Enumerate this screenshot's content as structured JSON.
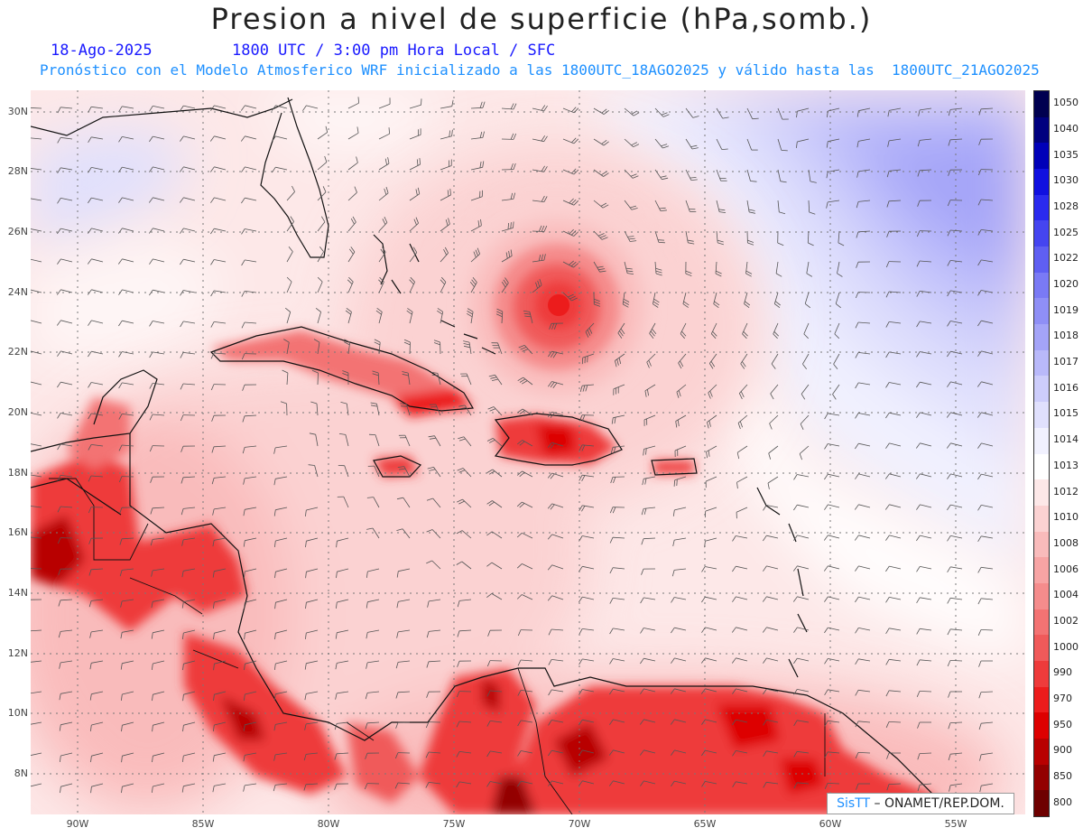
{
  "header": {
    "title": "Presion a nivel de superficie (hPa,somb.)",
    "date": "18-Ago-2025",
    "time_line": "1800 UTC / 3:00 pm Hora Local / SFC",
    "forecast_line": "Pronóstico con el Modelo Atmosferico WRF inicializado a las 1800UTC_18AGO2025 y válido hasta las  1800UTC_21AGO2025"
  },
  "map": {
    "lat_labels": [
      "30N",
      "28N",
      "26N",
      "24N",
      "22N",
      "20N",
      "18N",
      "16N",
      "14N",
      "12N",
      "10N",
      "8N"
    ],
    "lon_labels": [
      "90W",
      "85W",
      "80W",
      "75W",
      "70W",
      "65W",
      "60W",
      "55W"
    ],
    "lat_range": [
      6.7,
      30.8
    ],
    "lon_range": [
      -91.8,
      -52.3
    ],
    "layers": [
      "pressure-shading",
      "wind-barbs",
      "coastlines",
      "grid"
    ]
  },
  "legend": {
    "levels": [
      "1050",
      "1040",
      "1035",
      "1030",
      "1028",
      "1025",
      "1022",
      "1020",
      "1019",
      "1018",
      "1017",
      "1016",
      "1015",
      "1014",
      "1013",
      "1012",
      "1010",
      "1008",
      "1006",
      "1004",
      "1002",
      "1000",
      "990",
      "970",
      "950",
      "900",
      "850",
      "800"
    ],
    "colors": [
      "#000050",
      "#00007f",
      "#0000b8",
      "#1010e0",
      "#2a2aee",
      "#4545f0",
      "#5f5ff2",
      "#7a7af5",
      "#8f8ff6",
      "#a4a4f8",
      "#b9b9fa",
      "#cdcdfb",
      "#e0e0fd",
      "#f1f1fe",
      "#ffffff",
      "#fde8e8",
      "#fbd2d2",
      "#f9bbbb",
      "#f7a4a4",
      "#f58c8c",
      "#f37373",
      "#f05a5a",
      "#ee3b3b",
      "#ec1c1c",
      "#dd0000",
      "#b80000",
      "#930000",
      "#6e0000"
    ]
  },
  "credit": {
    "logo": "SisTT",
    "text": "– ONAMET/REP.DOM."
  }
}
